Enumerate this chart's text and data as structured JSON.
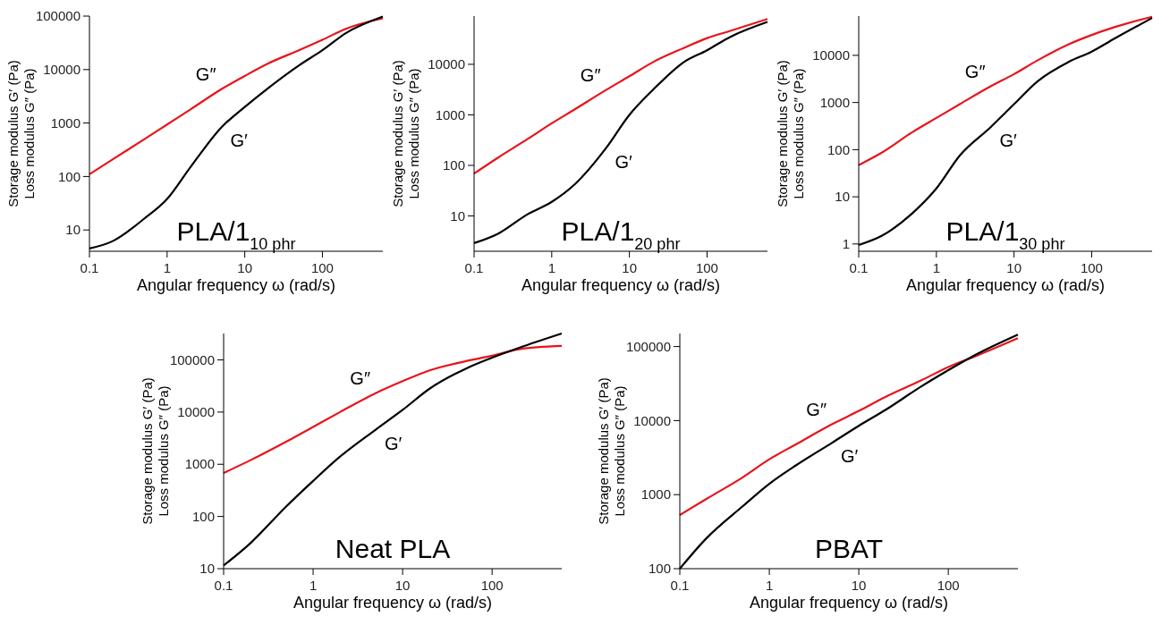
{
  "chart_data": [
    {
      "type": "line",
      "title": "PLA/1$_{10 phr}$",
      "xlabel": "Angular frequency ω (rad/s)",
      "ylabel": "Storage modulus G′ (Pa)\nLoss modulus G″ (Pa)",
      "log": "xy",
      "xlim": [
        0.1,
        600
      ],
      "xticks": [
        0.1,
        1,
        10,
        100
      ],
      "ylim": [
        4,
        100000
      ],
      "yticks": [
        10,
        100,
        1000,
        10000,
        100000
      ],
      "x": [
        0.1,
        0.2,
        0.5,
        1,
        2,
        5,
        10,
        20,
        50,
        100,
        200,
        600
      ],
      "series": [
        {
          "name": "G″",
          "color": "#e8141c",
          "values": [
            110,
            210,
            490,
            940,
            1800,
            4300,
            7600,
            13000,
            23000,
            36000,
            58000,
            91000
          ]
        },
        {
          "name": "G′",
          "color": "#000000",
          "values": [
            4.5,
            6.2,
            16,
            38,
            150,
            830,
            2000,
            4500,
            12000,
            23000,
            48000,
            98000
          ]
        }
      ]
    },
    {
      "type": "line",
      "title": "PLA/1$_{20 phr}$",
      "xlabel": "Angular frequency ω (rad/s)",
      "ylabel": "Storage modulus G′ (Pa)\nLoss modulus G″ (Pa)",
      "log": "xy",
      "xlim": [
        0.1,
        600
      ],
      "xticks": [
        0.1,
        1,
        10,
        100
      ],
      "ylim": [
        2,
        90000
      ],
      "yticks": [
        10,
        100,
        1000,
        10000
      ],
      "x": [
        0.1,
        0.2,
        0.5,
        1,
        2,
        5,
        10,
        20,
        50,
        100,
        200,
        600
      ],
      "series": [
        {
          "name": "G″",
          "color": "#e8141c",
          "values": [
            69,
            140,
            340,
            680,
            1300,
            3100,
            5800,
            11000,
            21000,
            33000,
            46000,
            79000
          ]
        },
        {
          "name": "G′",
          "color": "#000000",
          "values": [
            2.9,
            4.4,
            11,
            19,
            43,
            220,
            1000,
            3100,
            11000,
            19000,
            35000,
            69000
          ]
        }
      ]
    },
    {
      "type": "line",
      "title": "PLA/1$_{30 phr}$",
      "xlabel": "Angular frequency ω (rad/s)",
      "ylabel": "Storage modulus G′ (Pa)\nLoss modulus G″ (Pa)",
      "log": "xy",
      "xlim": [
        0.1,
        600
      ],
      "xticks": [
        0.1,
        1,
        10,
        100
      ],
      "ylim": [
        0.7,
        68000
      ],
      "yticks": [
        1,
        10,
        100,
        1000,
        10000
      ],
      "x": [
        0.1,
        0.2,
        0.5,
        1,
        2,
        5,
        10,
        20,
        50,
        100,
        200,
        600
      ],
      "series": [
        {
          "name": "G″",
          "color": "#e8141c",
          "values": [
            47,
            87,
            240,
            470,
            920,
            2200,
            4000,
            7800,
            17000,
            27000,
            40000,
            66000
          ]
        },
        {
          "name": "G′",
          "color": "#000000",
          "values": [
            0.95,
            1.5,
            4.6,
            15,
            75,
            300,
            920,
            2800,
            7200,
            12000,
            23000,
            62000
          ]
        }
      ]
    },
    {
      "type": "line",
      "title": "Neat PLA",
      "xlabel": "Angular frequency ω (rad/s)",
      "ylabel": "Storage modulus G′ (Pa)\nLoss modulus G″ (Pa)",
      "log": "xy",
      "xlim": [
        0.1,
        600
      ],
      "xticks": [
        0.1,
        1,
        10,
        100
      ],
      "ylim": [
        10,
        320000
      ],
      "yticks": [
        10,
        100,
        1000,
        10000,
        100000
      ],
      "x": [
        0.1,
        0.2,
        0.5,
        1,
        2,
        5,
        10,
        20,
        50,
        100,
        200,
        600
      ],
      "series": [
        {
          "name": "G″",
          "color": "#e8141c",
          "values": [
            680,
            1200,
            2700,
            5200,
            10000,
            23000,
            39000,
            63000,
            94000,
            120000,
            160000,
            185000
          ]
        },
        {
          "name": "G′",
          "color": "#000000",
          "values": [
            11.5,
            31,
            155,
            480,
            1400,
            4600,
            11000,
            28000,
            67000,
            110000,
            170000,
            320000
          ]
        }
      ]
    },
    {
      "type": "line",
      "title": "PBAT",
      "xlabel": "Angular frequency ω (rad/s)",
      "ylabel": "Storage modulus G′ (Pa)\nLoss modulus G″ (Pa)",
      "log": "xy",
      "xlim": [
        0.1,
        600
      ],
      "xticks": [
        0.1,
        1,
        10,
        100
      ],
      "ylim": [
        100,
        150000
      ],
      "yticks": [
        100,
        1000,
        10000,
        100000
      ],
      "x": [
        0.1,
        0.2,
        0.5,
        1,
        2,
        5,
        10,
        20,
        50,
        100,
        200,
        600
      ],
      "series": [
        {
          "name": "G″",
          "color": "#e8141c",
          "values": [
            530,
            880,
            1700,
            3000,
            4800,
            8900,
            13500,
            21000,
            35000,
            53000,
            74000,
            130000
          ]
        },
        {
          "name": "G′",
          "color": "#000000",
          "values": [
            100,
            260,
            690,
            1400,
            2500,
            5000,
            8500,
            14000,
            29000,
            48000,
            77000,
            145000
          ]
        }
      ]
    }
  ]
}
